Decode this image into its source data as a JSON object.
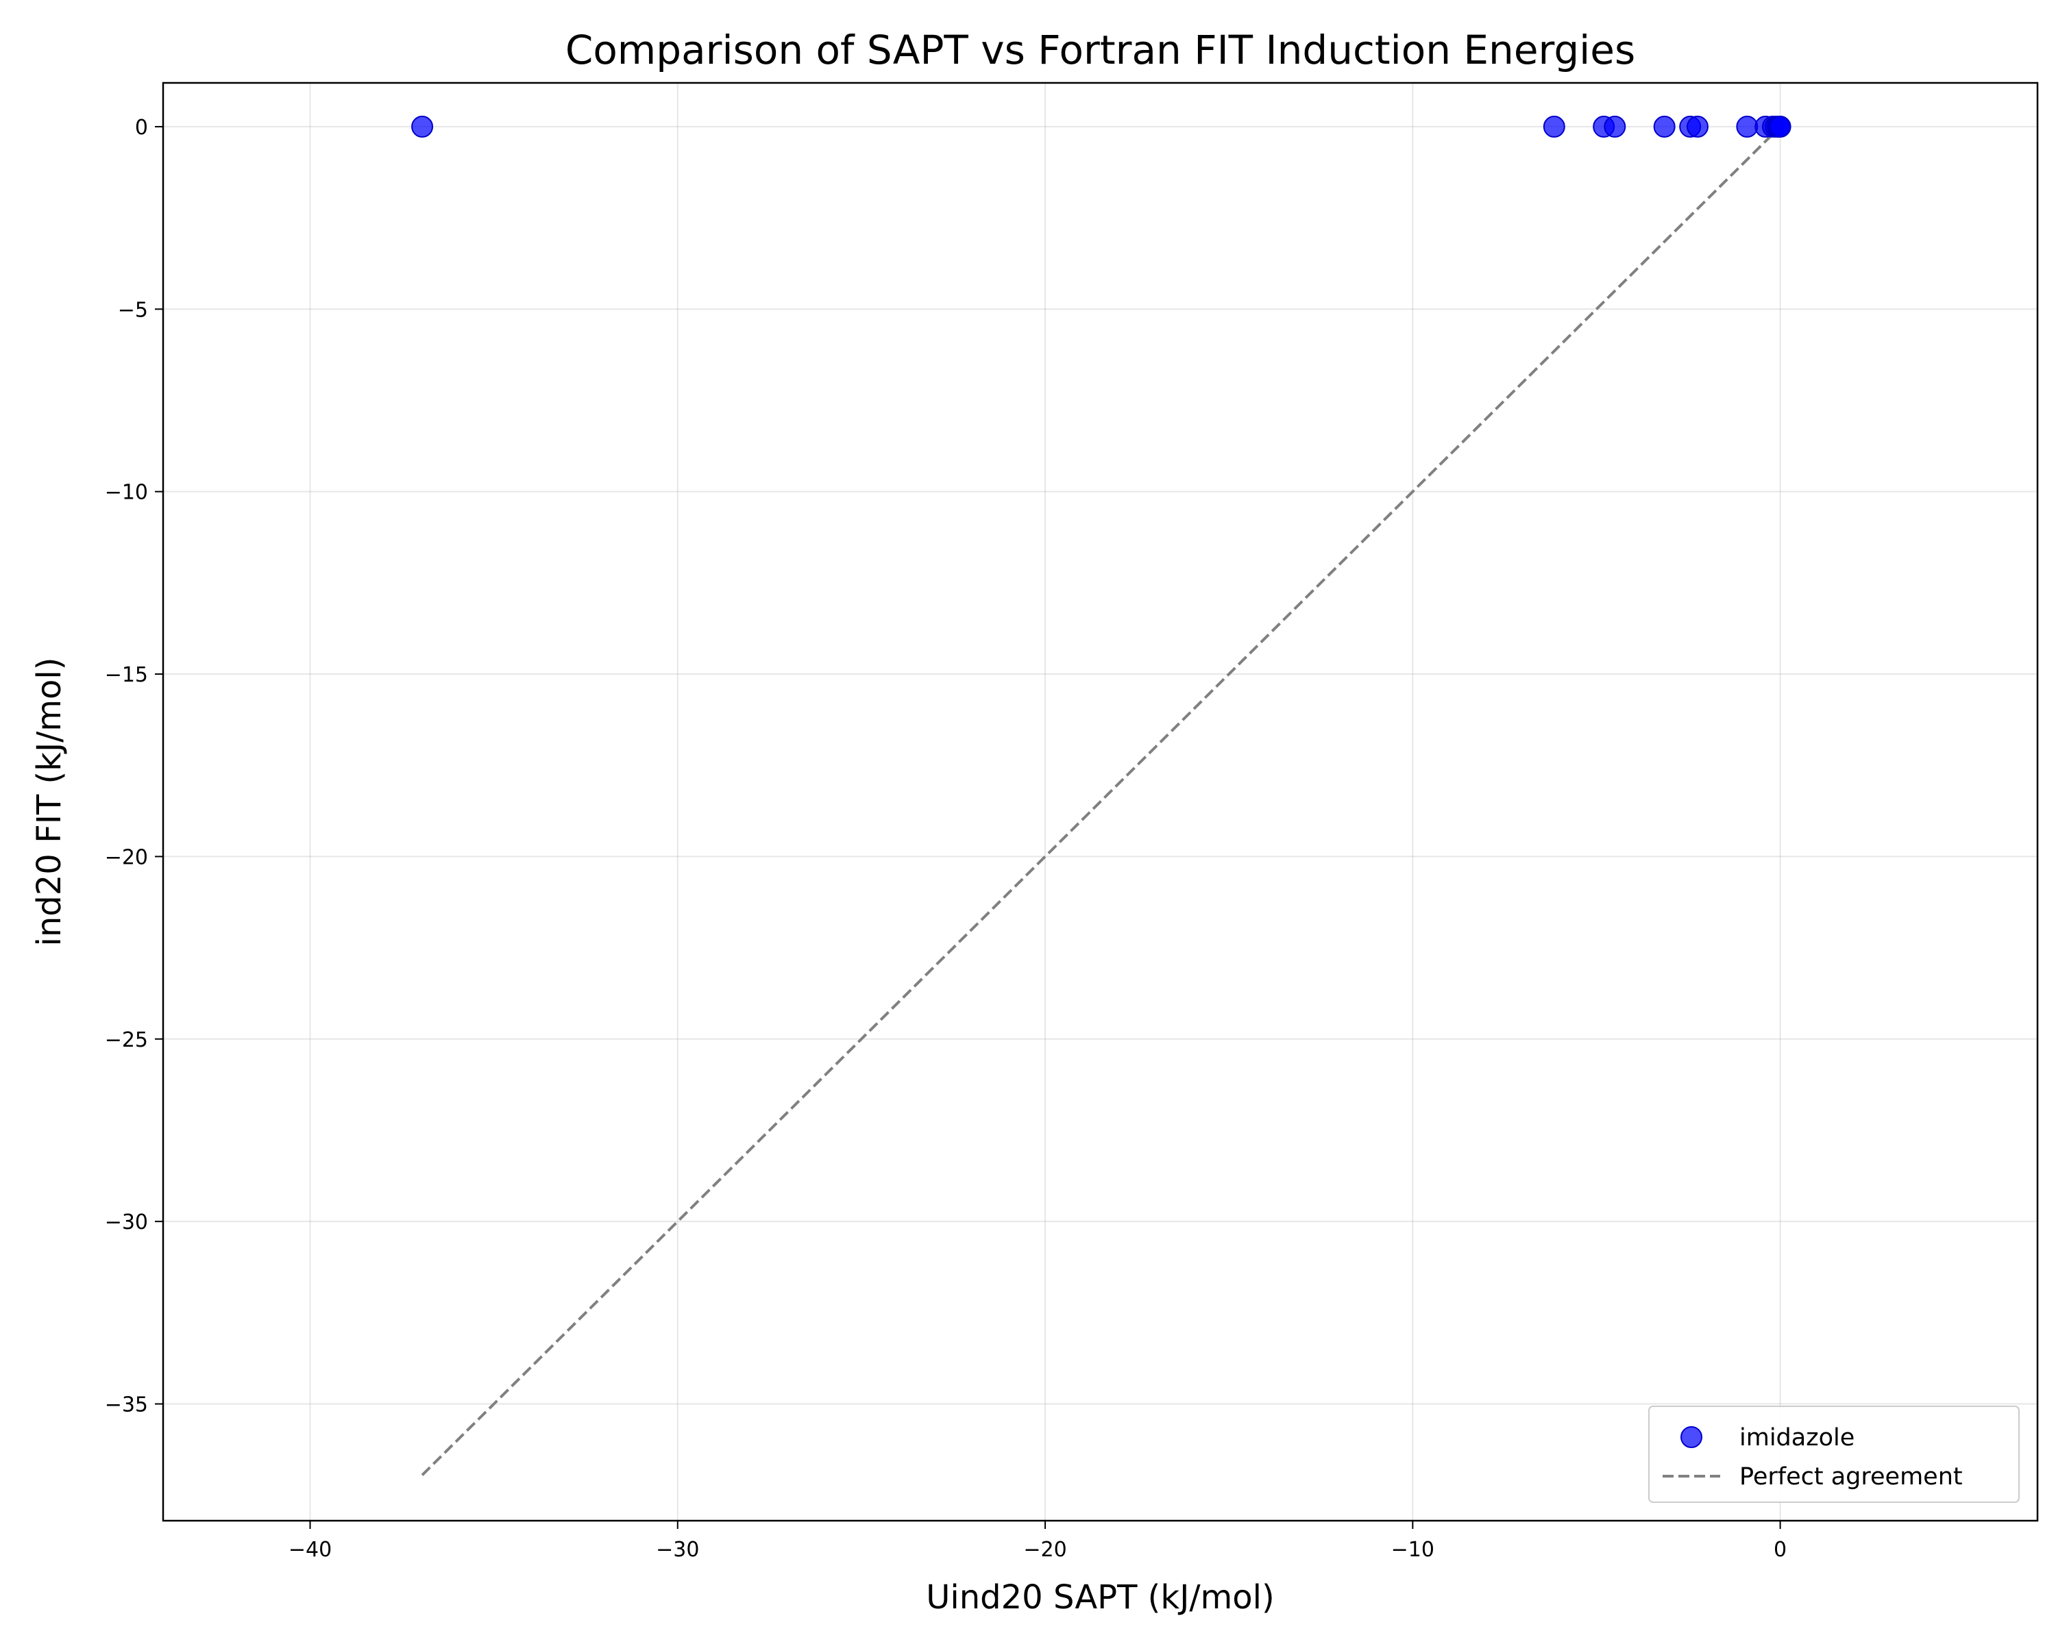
{
  "chart_data": {
    "type": "scatter",
    "title": "Comparison of SAPT vs Fortran FIT Induction Energies",
    "xlabel": "Uind20 SAPT (kJ/mol)",
    "ylabel": "ind20 FIT (kJ/mol)",
    "xlim": [
      -44,
      7
    ],
    "ylim": [
      -38.2,
      1.2
    ],
    "xticks": [
      -40,
      -30,
      -20,
      -10,
      0
    ],
    "yticks": [
      0,
      -5,
      -10,
      -15,
      -20,
      -25,
      -30,
      -35
    ],
    "xtick_labels": [
      "−40",
      "−30",
      "−20",
      "−10",
      "0"
    ],
    "ytick_labels": [
      "0",
      "−5",
      "−10",
      "−15",
      "−20",
      "−25",
      "−30",
      "−35"
    ],
    "grid": true,
    "legend_position": "lower-right",
    "series": [
      {
        "name": "imidazole",
        "kind": "scatter",
        "color": "#0000ff",
        "x": [
          -36.95,
          -6.15,
          -4.8,
          -4.5,
          -3.15,
          -2.45,
          -2.25,
          -0.9,
          -0.4,
          -0.2,
          -0.12,
          -0.06,
          -0.02,
          0.0
        ],
        "y": [
          0,
          0,
          0,
          0,
          0,
          0,
          0,
          0,
          0,
          0,
          0,
          0,
          0,
          0
        ]
      },
      {
        "name": "Perfect agreement",
        "kind": "line",
        "color": "#808080",
        "style": "dashed",
        "x": [
          -36.95,
          0
        ],
        "y": [
          -36.95,
          0
        ]
      }
    ]
  }
}
